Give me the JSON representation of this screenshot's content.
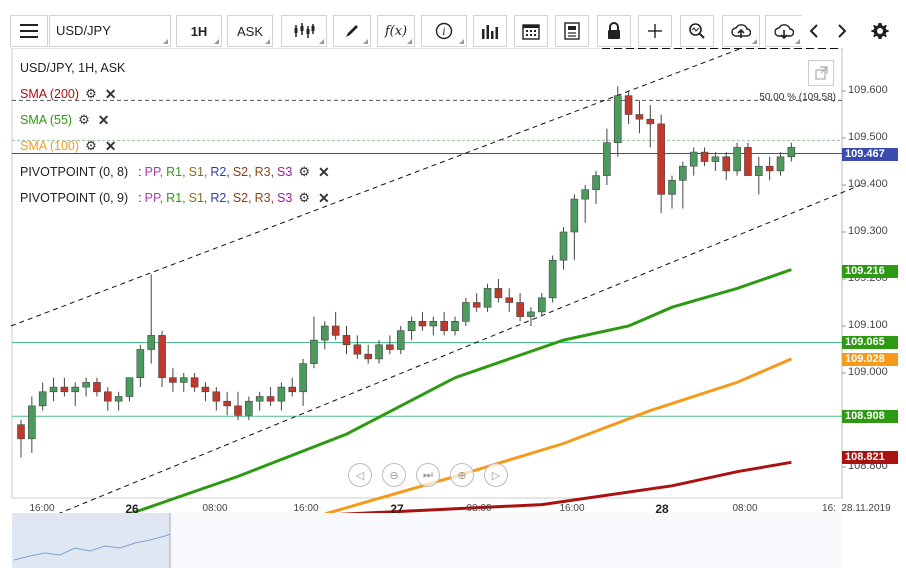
{
  "toolbar": {
    "symbol": "USD/JPY",
    "timeframe": "1H",
    "price_type": "ASK",
    "icons": [
      "menu-icon",
      "candles-icon",
      "draw-icon",
      "function-icon",
      "info-icon",
      "volume-bars-icon",
      "calendar-icon",
      "news-icon",
      "lock-icon",
      "crosshair-icon",
      "zoom-icon",
      "upload-icon",
      "download-icon",
      "chevron-left-icon",
      "chevron-right-icon",
      "gear-icon"
    ]
  },
  "legend": {
    "title": "USD/JPY, 1H, ASK",
    "sma200": "SMA (200)",
    "sma55": "SMA (55)",
    "sma100": "SMA (100)",
    "pivot1_name": "PIVOTPOINT (0, 8)",
    "pivot2_name": "PIVOTPOINT (0, 9)",
    "pivot_sep": ":",
    "pivot_labels": [
      "PP,",
      "R1,",
      "S1,",
      "R2,",
      "S2,",
      "R3,",
      "S3"
    ]
  },
  "colors": {
    "sma200": "#aa1111",
    "sma55": "#2e9a14",
    "sma100": "#f59a1a",
    "bull": "#4d9a5f",
    "bear": "#c0392b",
    "pp": "#b03ab0",
    "r1": "#2e9a14",
    "s1": "#8a6d1a",
    "r2": "#2b3fb5",
    "s2": "#8a3a1a",
    "r3": "#8a4a1a",
    "s3": "#9a1a9a",
    "current": "#3a4bb0"
  },
  "fib_label": "50.00 % (109.58)",
  "price_tags": {
    "current": "109.467",
    "sma55": "109.216",
    "pivot_a": "109.065",
    "sma100": "109.028",
    "pivot_b": "108.908",
    "sma200": "108.821"
  },
  "y_axis": [
    "109.600",
    "109.500",
    "109.400",
    "109.300",
    "109.200",
    "109.100",
    "109.000",
    "108.900",
    "108.800"
  ],
  "x_axis": {
    "minor": [
      "16:00",
      "08:00",
      "16:00",
      "08:00",
      "16:00",
      "08:00",
      "16:"
    ],
    "major": [
      "26",
      "27",
      "28"
    ],
    "end_date": "28.11.2019"
  },
  "chart_data": {
    "type": "candlestick",
    "instrument": "USD/JPY",
    "interval": "1H",
    "ylim": [
      108.73,
      109.69
    ],
    "candles": [
      {
        "o": 108.89,
        "h": 108.9,
        "l": 108.82,
        "c": 108.86
      },
      {
        "o": 108.86,
        "h": 108.95,
        "l": 108.83,
        "c": 108.93
      },
      {
        "o": 108.93,
        "h": 108.98,
        "l": 108.92,
        "c": 108.96
      },
      {
        "o": 108.96,
        "h": 108.99,
        "l": 108.94,
        "c": 108.97
      },
      {
        "o": 108.97,
        "h": 108.99,
        "l": 108.95,
        "c": 108.96
      },
      {
        "o": 108.96,
        "h": 108.98,
        "l": 108.93,
        "c": 108.97
      },
      {
        "o": 108.97,
        "h": 108.99,
        "l": 108.95,
        "c": 108.98
      },
      {
        "o": 108.98,
        "h": 108.99,
        "l": 108.95,
        "c": 108.96
      },
      {
        "o": 108.96,
        "h": 108.97,
        "l": 108.92,
        "c": 108.94
      },
      {
        "o": 108.94,
        "h": 108.96,
        "l": 108.92,
        "c": 108.95
      },
      {
        "o": 108.95,
        "h": 108.99,
        "l": 108.94,
        "c": 108.99
      },
      {
        "o": 108.99,
        "h": 109.06,
        "l": 108.97,
        "c": 109.05
      },
      {
        "o": 109.05,
        "h": 109.21,
        "l": 109.02,
        "c": 109.08
      },
      {
        "o": 109.08,
        "h": 109.09,
        "l": 108.97,
        "c": 108.99
      },
      {
        "o": 108.99,
        "h": 109.01,
        "l": 108.96,
        "c": 108.98
      },
      {
        "o": 108.98,
        "h": 109.0,
        "l": 108.96,
        "c": 108.99
      },
      {
        "o": 108.99,
        "h": 109.0,
        "l": 108.96,
        "c": 108.97
      },
      {
        "o": 108.97,
        "h": 108.98,
        "l": 108.94,
        "c": 108.96
      },
      {
        "o": 108.96,
        "h": 108.97,
        "l": 108.92,
        "c": 108.94
      },
      {
        "o": 108.94,
        "h": 108.96,
        "l": 108.91,
        "c": 108.93
      },
      {
        "o": 108.93,
        "h": 108.96,
        "l": 108.9,
        "c": 108.91
      },
      {
        "o": 108.91,
        "h": 108.95,
        "l": 108.9,
        "c": 108.94
      },
      {
        "o": 108.94,
        "h": 108.96,
        "l": 108.92,
        "c": 108.95
      },
      {
        "o": 108.95,
        "h": 108.97,
        "l": 108.93,
        "c": 108.94
      },
      {
        "o": 108.94,
        "h": 108.98,
        "l": 108.92,
        "c": 108.97
      },
      {
        "o": 108.97,
        "h": 108.99,
        "l": 108.95,
        "c": 108.96
      },
      {
        "o": 108.96,
        "h": 109.03,
        "l": 108.93,
        "c": 109.02
      },
      {
        "o": 109.02,
        "h": 109.12,
        "l": 109.01,
        "c": 109.07
      },
      {
        "o": 109.07,
        "h": 109.11,
        "l": 109.05,
        "c": 109.1
      },
      {
        "o": 109.1,
        "h": 109.13,
        "l": 109.07,
        "c": 109.08
      },
      {
        "o": 109.08,
        "h": 109.1,
        "l": 109.04,
        "c": 109.06
      },
      {
        "o": 109.06,
        "h": 109.08,
        "l": 109.03,
        "c": 109.04
      },
      {
        "o": 109.04,
        "h": 109.06,
        "l": 109.02,
        "c": 109.03
      },
      {
        "o": 109.03,
        "h": 109.07,
        "l": 109.02,
        "c": 109.06
      },
      {
        "o": 109.06,
        "h": 109.08,
        "l": 109.04,
        "c": 109.05
      },
      {
        "o": 109.05,
        "h": 109.1,
        "l": 109.04,
        "c": 109.09
      },
      {
        "o": 109.09,
        "h": 109.12,
        "l": 109.07,
        "c": 109.11
      },
      {
        "o": 109.11,
        "h": 109.13,
        "l": 109.09,
        "c": 109.1
      },
      {
        "o": 109.1,
        "h": 109.12,
        "l": 109.08,
        "c": 109.11
      },
      {
        "o": 109.11,
        "h": 109.13,
        "l": 109.08,
        "c": 109.09
      },
      {
        "o": 109.09,
        "h": 109.12,
        "l": 109.08,
        "c": 109.11
      },
      {
        "o": 109.11,
        "h": 109.16,
        "l": 109.1,
        "c": 109.15
      },
      {
        "o": 109.15,
        "h": 109.17,
        "l": 109.13,
        "c": 109.14
      },
      {
        "o": 109.14,
        "h": 109.19,
        "l": 109.13,
        "c": 109.18
      },
      {
        "o": 109.18,
        "h": 109.2,
        "l": 109.15,
        "c": 109.16
      },
      {
        "o": 109.16,
        "h": 109.18,
        "l": 109.13,
        "c": 109.15
      },
      {
        "o": 109.15,
        "h": 109.17,
        "l": 109.11,
        "c": 109.12
      },
      {
        "o": 109.12,
        "h": 109.14,
        "l": 109.1,
        "c": 109.13
      },
      {
        "o": 109.13,
        "h": 109.17,
        "l": 109.12,
        "c": 109.16
      },
      {
        "o": 109.16,
        "h": 109.25,
        "l": 109.15,
        "c": 109.24
      },
      {
        "o": 109.24,
        "h": 109.31,
        "l": 109.22,
        "c": 109.3
      },
      {
        "o": 109.3,
        "h": 109.38,
        "l": 109.24,
        "c": 109.37
      },
      {
        "o": 109.37,
        "h": 109.4,
        "l": 109.32,
        "c": 109.39
      },
      {
        "o": 109.39,
        "h": 109.43,
        "l": 109.36,
        "c": 109.42
      },
      {
        "o": 109.42,
        "h": 109.52,
        "l": 109.4,
        "c": 109.49
      },
      {
        "o": 109.49,
        "h": 109.61,
        "l": 109.46,
        "c": 109.59
      },
      {
        "o": 109.59,
        "h": 109.6,
        "l": 109.53,
        "c": 109.55
      },
      {
        "o": 109.55,
        "h": 109.58,
        "l": 109.51,
        "c": 109.54
      },
      {
        "o": 109.54,
        "h": 109.57,
        "l": 109.48,
        "c": 109.53
      },
      {
        "o": 109.53,
        "h": 109.55,
        "l": 109.34,
        "c": 109.38
      },
      {
        "o": 109.38,
        "h": 109.42,
        "l": 109.35,
        "c": 109.41
      },
      {
        "o": 109.41,
        "h": 109.45,
        "l": 109.35,
        "c": 109.44
      },
      {
        "o": 109.44,
        "h": 109.48,
        "l": 109.42,
        "c": 109.47
      },
      {
        "o": 109.47,
        "h": 109.48,
        "l": 109.44,
        "c": 109.45
      },
      {
        "o": 109.45,
        "h": 109.47,
        "l": 109.43,
        "c": 109.46
      },
      {
        "o": 109.46,
        "h": 109.47,
        "l": 109.41,
        "c": 109.43
      },
      {
        "o": 109.43,
        "h": 109.49,
        "l": 109.42,
        "c": 109.48
      },
      {
        "o": 109.48,
        "h": 109.49,
        "l": 109.42,
        "c": 109.42
      },
      {
        "o": 109.42,
        "h": 109.46,
        "l": 109.38,
        "c": 109.44
      },
      {
        "o": 109.44,
        "h": 109.46,
        "l": 109.41,
        "c": 109.43
      },
      {
        "o": 109.43,
        "h": 109.47,
        "l": 109.42,
        "c": 109.46
      },
      {
        "o": 109.46,
        "h": 109.49,
        "l": 109.45,
        "c": 109.48
      }
    ],
    "lines": {
      "sma200": [
        [
          0,
          108.66
        ],
        [
          30,
          108.7
        ],
        [
          48,
          108.72
        ],
        [
          60,
          108.76
        ],
        [
          66,
          108.79
        ],
        [
          71,
          108.81
        ]
      ],
      "sma55": [
        [
          10,
          108.7
        ],
        [
          20,
          108.78
        ],
        [
          30,
          108.87
        ],
        [
          40,
          108.99
        ],
        [
          50,
          109.07
        ],
        [
          56,
          109.1
        ],
        [
          60,
          109.14
        ],
        [
          66,
          109.18
        ],
        [
          71,
          109.22
        ]
      ],
      "sma100": [
        [
          28,
          108.7
        ],
        [
          40,
          108.78
        ],
        [
          50,
          108.85
        ],
        [
          58,
          108.92
        ],
        [
          66,
          108.98
        ],
        [
          71,
          109.03
        ]
      ]
    },
    "horizontal_levels": [
      109.58,
      109.467,
      109.065,
      108.908
    ],
    "channel": {
      "upper": [
        [
          0,
          109.1
        ],
        [
          72,
          109.74
        ]
      ],
      "lower": [
        [
          2,
          108.7
        ],
        [
          76,
          109.4
        ]
      ]
    }
  }
}
